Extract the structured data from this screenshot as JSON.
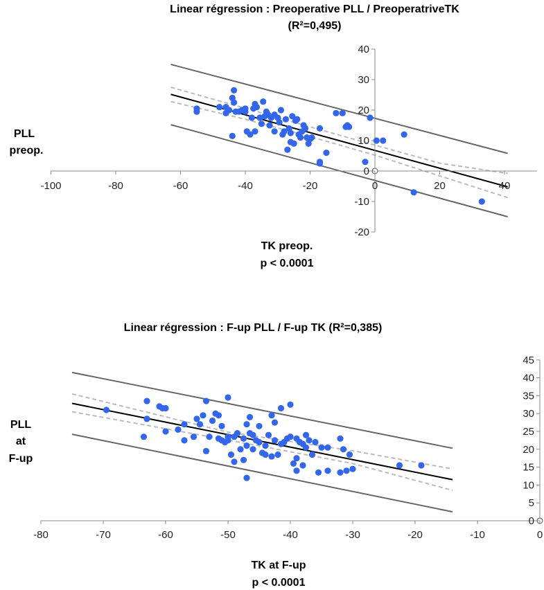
{
  "chart_data": [
    {
      "type": "scatter",
      "title": "Linear régression : Preoperative PLL / PreoperatriveTK",
      "subtitle": "(R²=0,495)",
      "xlabel": "TK preop.",
      "xlabel_sub": "p < 0.0001",
      "ylabel": [
        "PLL",
        "preop."
      ],
      "xlim": [
        -100,
        50
      ],
      "ylim": [
        -20,
        40
      ],
      "xticks": [
        -100,
        -80,
        -60,
        -40,
        -20,
        0,
        20,
        40
      ],
      "yticks": [
        -20,
        -10,
        0,
        10,
        20,
        30,
        40
      ],
      "xtick_labels": [
        "-100",
        "-80",
        "-60",
        "-40",
        "-20",
        "0",
        "20",
        "40"
      ],
      "ytick_labels": [
        "-20",
        "-10",
        "0",
        "10",
        "20",
        "30",
        "40"
      ],
      "grid": false,
      "marker_color": "#3366ee",
      "points": [
        [
          -55,
          19.5
        ],
        [
          -55,
          20.5
        ],
        [
          -48,
          21
        ],
        [
          -46,
          19
        ],
        [
          -46,
          21
        ],
        [
          -45,
          20
        ],
        [
          -44,
          24
        ],
        [
          -44,
          11.5
        ],
        [
          -43.5,
          22.5
        ],
        [
          -43.5,
          26.5
        ],
        [
          -43,
          19.5
        ],
        [
          -42,
          19.5
        ],
        [
          -41,
          20
        ],
        [
          -40,
          19.5
        ],
        [
          -40,
          20.5
        ],
        [
          -39.5,
          13
        ],
        [
          -38.5,
          12
        ],
        [
          -38,
          17.5
        ],
        [
          -37.5,
          20.5
        ],
        [
          -37,
          13
        ],
        [
          -37,
          22
        ],
        [
          -36.5,
          21
        ],
        [
          -35.5,
          17.5
        ],
        [
          -35,
          15.5
        ],
        [
          -34.5,
          22.8
        ],
        [
          -34,
          18
        ],
        [
          -33.5,
          19.5
        ],
        [
          -33,
          18.5
        ],
        [
          -32.5,
          15
        ],
        [
          -32,
          17.5
        ],
        [
          -31,
          13
        ],
        [
          -31,
          18.5
        ],
        [
          -30,
          17.5
        ],
        [
          -29.5,
          16
        ],
        [
          -29,
          20
        ],
        [
          -28.5,
          12
        ],
        [
          -28,
          13
        ],
        [
          -27.5,
          17
        ],
        [
          -27,
          7
        ],
        [
          -26.5,
          14
        ],
        [
          -26,
          9.5
        ],
        [
          -26,
          12.5
        ],
        [
          -25.5,
          18
        ],
        [
          -25,
          9
        ],
        [
          -24.5,
          16.5
        ],
        [
          -24,
          17
        ],
        [
          -23.5,
          12
        ],
        [
          -23,
          11
        ],
        [
          -22.5,
          13
        ],
        [
          -22,
          15
        ],
        [
          -21.5,
          14
        ],
        [
          -21,
          11
        ],
        [
          -20.5,
          9
        ],
        [
          -20,
          10.5
        ],
        [
          -19.5,
          11
        ],
        [
          -17,
          3
        ],
        [
          -17,
          2.5
        ],
        [
          -17,
          14
        ],
        [
          -15,
          6
        ],
        [
          -12,
          19
        ],
        [
          -10,
          19
        ],
        [
          -9,
          14.5
        ],
        [
          -8.5,
          15
        ],
        [
          -8,
          14.5
        ],
        [
          -3,
          3
        ],
        [
          -1.5,
          17.5
        ],
        [
          0.5,
          10
        ],
        [
          2.5,
          10
        ],
        [
          9,
          12
        ],
        [
          12,
          -7
        ],
        [
          33,
          -10
        ]
      ],
      "regression": {
        "slope": -0.292,
        "intercept": 6.77,
        "x_range": [
          -63,
          41
        ]
      },
      "confidence_band": {
        "lower": [
          [
            -63,
            22.8
          ],
          [
            -40,
            17
          ],
          [
            -20,
            11.3
          ],
          [
            0,
            5.2
          ],
          [
            20,
            -1.6
          ],
          [
            41,
            -8.7
          ]
        ],
        "upper": [
          [
            -63,
            27.5
          ],
          [
            -40,
            20.6
          ],
          [
            -20,
            14.5
          ],
          [
            0,
            8.5
          ],
          [
            20,
            2.6
          ],
          [
            41,
            -0.8
          ]
        ]
      },
      "prediction_band": {
        "lower": [
          [
            -63,
            15.2
          ],
          [
            41,
            -15
          ]
        ],
        "upper": [
          [
            -63,
            35
          ],
          [
            41,
            5.8
          ]
        ]
      }
    },
    {
      "type": "scatter",
      "title": "Linear régression : F-up PLL / F-up TK (R²=0,385)",
      "xlabel": "TK at F-up",
      "xlabel_sub": "p < 0.0001",
      "ylabel": [
        "PLL",
        "at",
        "F-up"
      ],
      "xlim": [
        -80,
        0
      ],
      "ylim": [
        0,
        45
      ],
      "xticks": [
        -80,
        -70,
        -60,
        -50,
        -40,
        -30,
        -20,
        -10,
        0
      ],
      "yticks": [
        0,
        5,
        10,
        15,
        20,
        25,
        30,
        35,
        40,
        45
      ],
      "xtick_labels": [
        "-80",
        "-70",
        "-60",
        "-50",
        "-40",
        "-30",
        "-20",
        "-10",
        "0"
      ],
      "ytick_labels": [
        "0",
        "5",
        "10",
        "15",
        "20",
        "25",
        "30",
        "35",
        "40",
        "45"
      ],
      "grid": false,
      "marker_color": "#3366ee",
      "points": [
        [
          -69.5,
          31
        ],
        [
          -63,
          33.5
        ],
        [
          -63,
          28.5
        ],
        [
          -63.5,
          23.5
        ],
        [
          -61,
          32
        ],
        [
          -60.5,
          31.5
        ],
        [
          -60,
          31.5
        ],
        [
          -60,
          25
        ],
        [
          -58,
          25.5
        ],
        [
          -57,
          27
        ],
        [
          -57,
          22.5
        ],
        [
          -55.5,
          23.5
        ],
        [
          -55,
          28.5
        ],
        [
          -54,
          29.5
        ],
        [
          -54.5,
          27
        ],
        [
          -53.5,
          33.5
        ],
        [
          -53.5,
          19.5
        ],
        [
          -53,
          23.5
        ],
        [
          -52.5,
          28
        ],
        [
          -52,
          30
        ],
        [
          -51.5,
          29.5
        ],
        [
          -51.5,
          23
        ],
        [
          -51,
          26.5
        ],
        [
          -51,
          22.5
        ],
        [
          -50.5,
          22
        ],
        [
          -50,
          34.5
        ],
        [
          -50,
          23.5
        ],
        [
          -50,
          22.5
        ],
        [
          -49.5,
          18.5
        ],
        [
          -49,
          23.5
        ],
        [
          -49,
          16.5
        ],
        [
          -48.5,
          24.5
        ],
        [
          -48,
          20
        ],
        [
          -47.5,
          23
        ],
        [
          -47.5,
          17
        ],
        [
          -47,
          21
        ],
        [
          -47,
          27
        ],
        [
          -47,
          12
        ],
        [
          -46.5,
          29
        ],
        [
          -46.5,
          24.5
        ],
        [
          -46,
          24
        ],
        [
          -46,
          20
        ],
        [
          -45.5,
          22.5
        ],
        [
          -45,
          26.5
        ],
        [
          -45,
          22
        ],
        [
          -44.5,
          19
        ],
        [
          -44,
          18.5
        ],
        [
          -44,
          21
        ],
        [
          -43.5,
          24
        ],
        [
          -43,
          29.5
        ],
        [
          -43,
          18
        ],
        [
          -42.5,
          27.5
        ],
        [
          -42.5,
          22.5
        ],
        [
          -42,
          18.5
        ],
        [
          -41.5,
          31.5
        ],
        [
          -41.5,
          21.5
        ],
        [
          -41,
          22
        ],
        [
          -40.5,
          23
        ],
        [
          -40,
          32.5
        ],
        [
          -40,
          23.5
        ],
        [
          -39.5,
          16
        ],
        [
          -39,
          14
        ],
        [
          -39,
          17.5
        ],
        [
          -39,
          23
        ],
        [
          -38.5,
          22
        ],
        [
          -38,
          21.5
        ],
        [
          -38,
          15.5
        ],
        [
          -37.5,
          24
        ],
        [
          -37.5,
          20.5
        ],
        [
          -37,
          22.5
        ],
        [
          -36.5,
          18.5
        ],
        [
          -36,
          22
        ],
        [
          -35.5,
          13.5
        ],
        [
          -35,
          20.5
        ],
        [
          -34,
          14
        ],
        [
          -34,
          20.5
        ],
        [
          -32,
          23
        ],
        [
          -32,
          13.5
        ],
        [
          -31.5,
          20
        ],
        [
          -31,
          14
        ],
        [
          -30.5,
          18.5
        ],
        [
          -30,
          14.5
        ],
        [
          -22.5,
          15.5
        ],
        [
          -19,
          15.5
        ]
      ],
      "regression": {
        "slope": -0.35,
        "intercept": 6.6,
        "x_range": [
          -75,
          -14
        ]
      },
      "confidence_band": {
        "lower": [
          [
            -75,
            30.5
          ],
          [
            -50,
            22.6
          ],
          [
            -30,
            16
          ],
          [
            -14,
            8.5
          ]
        ],
        "upper": [
          [
            -75,
            35.5
          ],
          [
            -50,
            24.8
          ],
          [
            -30,
            19.6
          ],
          [
            -14,
            14.5
          ]
        ]
      },
      "prediction_band": {
        "lower": [
          [
            -75,
            24.2
          ],
          [
            -14,
            2.5
          ]
        ],
        "upper": [
          [
            -75,
            41.5
          ],
          [
            -14,
            20.3
          ]
        ]
      }
    }
  ]
}
